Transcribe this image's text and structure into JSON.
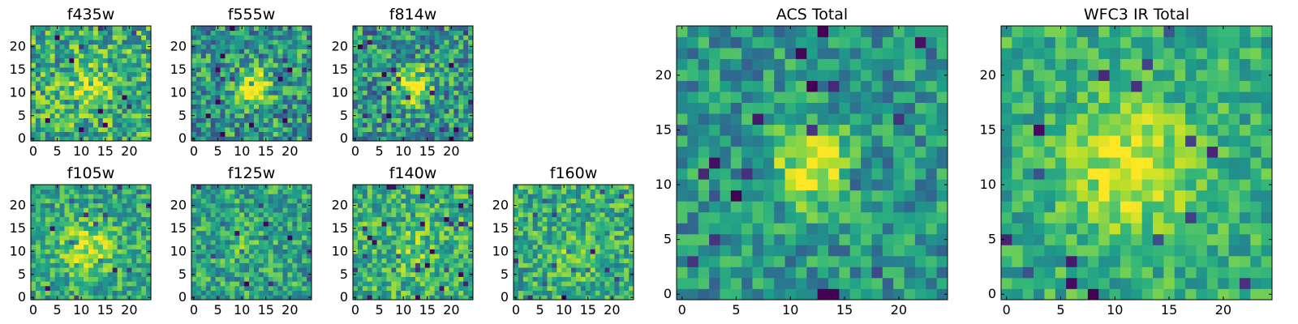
{
  "chart_data": {
    "type": "heatmap",
    "colormap": "viridis",
    "panels": [
      {
        "id": "f435w",
        "title": "f435w",
        "size": 25,
        "xticks": [
          0,
          5,
          10,
          15,
          20
        ],
        "yticks": [
          0,
          5,
          10,
          15,
          20
        ],
        "seed": 11,
        "blob": {
          "cx": 12.5,
          "cy": 11.5,
          "r": 3.0,
          "amp": 0.25
        },
        "noise": 0.3,
        "base": 0.62
      },
      {
        "id": "f555w",
        "title": "f555w",
        "size": 25,
        "xticks": [
          0,
          5,
          10,
          15,
          20
        ],
        "yticks": [
          0,
          5,
          10,
          15,
          20
        ],
        "seed": 23,
        "blob": {
          "cx": 12.5,
          "cy": 11.5,
          "r": 2.6,
          "amp": 0.55
        },
        "noise": 0.3,
        "base": 0.52
      },
      {
        "id": "f814w",
        "title": "f814w",
        "size": 25,
        "xticks": [
          0,
          5,
          10,
          15,
          20
        ],
        "yticks": [
          0,
          5,
          10,
          15,
          20
        ],
        "seed": 37,
        "blob": {
          "cx": 12.5,
          "cy": 12.0,
          "r": 2.6,
          "amp": 0.5
        },
        "noise": 0.3,
        "base": 0.52
      },
      {
        "id": "f105w",
        "title": "f105w",
        "size": 25,
        "xticks": [
          0,
          5,
          10,
          15,
          20
        ],
        "yticks": [
          0,
          5,
          10,
          15,
          20
        ],
        "seed": 41,
        "blob": {
          "cx": 12.0,
          "cy": 11.0,
          "r": 4.0,
          "amp": 0.3
        },
        "noise": 0.22,
        "base": 0.6
      },
      {
        "id": "f125w",
        "title": "f125w",
        "size": 25,
        "xticks": [
          0,
          5,
          10,
          15,
          20
        ],
        "yticks": [
          0,
          5,
          10,
          15,
          20
        ],
        "seed": 53,
        "blob": {
          "cx": 12.0,
          "cy": 11.0,
          "r": 3.0,
          "amp": 0.1
        },
        "noise": 0.24,
        "base": 0.58
      },
      {
        "id": "f140w",
        "title": "f140w",
        "size": 25,
        "xticks": [
          0,
          5,
          10,
          15,
          20
        ],
        "yticks": [
          0,
          5,
          10,
          15,
          20
        ],
        "seed": 67,
        "blob": {
          "cx": 12.0,
          "cy": 11.0,
          "r": 3.0,
          "amp": 0.12
        },
        "noise": 0.24,
        "base": 0.64
      },
      {
        "id": "f160w",
        "title": "f160w",
        "size": 25,
        "xticks": [
          0,
          5,
          10,
          15,
          20
        ],
        "yticks": [
          0,
          5,
          10,
          15,
          20
        ],
        "seed": 79,
        "blob": {
          "cx": 12.0,
          "cy": 10.0,
          "r": 3.0,
          "amp": 0.15
        },
        "noise": 0.24,
        "base": 0.62
      },
      {
        "id": "acs-total",
        "title": "ACS Total",
        "size": 25,
        "xticks": [
          0,
          5,
          10,
          15,
          20
        ],
        "yticks": [
          0,
          5,
          10,
          15,
          20
        ],
        "seed": 97,
        "blob": {
          "cx": 12.5,
          "cy": 12.0,
          "r": 2.4,
          "amp": 0.5
        },
        "noise": 0.22,
        "base": 0.52
      },
      {
        "id": "wfc3-ir-total",
        "title": "WFC3 IR Total",
        "size": 25,
        "xticks": [
          0,
          5,
          10,
          15,
          20
        ],
        "yticks": [
          0,
          5,
          10,
          15,
          20
        ],
        "seed": 113,
        "blob": {
          "cx": 12.0,
          "cy": 12.0,
          "r": 4.0,
          "amp": 0.35
        },
        "noise": 0.18,
        "base": 0.62
      }
    ]
  }
}
